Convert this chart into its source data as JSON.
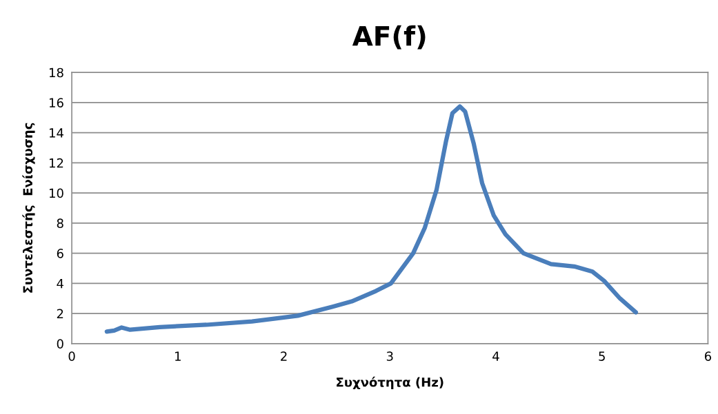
{
  "chart_data": {
    "type": "line",
    "title": "AF(f)",
    "xlabel": "Συχνότητα (Hz)",
    "ylabel": "Συντελεστής  Ενίσχυσης",
    "xlim": [
      0,
      6
    ],
    "xticks": [
      0,
      1,
      2,
      3,
      4,
      5,
      6
    ],
    "ylim": [
      0,
      18
    ],
    "yticks": [
      0,
      2,
      4,
      6,
      8,
      10,
      12,
      14,
      16,
      18
    ],
    "grid": "y",
    "legend": false,
    "marker": "none",
    "line_style": "solid",
    "series": [
      {
        "color": "#4a7ebb",
        "x": [
          0.33,
          0.4,
          0.47,
          0.55,
          0.83,
          1.27,
          1.7,
          2.13,
          2.46,
          2.64,
          2.87,
          3.01,
          3.22,
          3.33,
          3.44,
          3.53,
          3.59,
          3.66,
          3.71,
          3.79,
          3.87,
          3.98,
          4.09,
          4.26,
          4.52,
          4.74,
          4.91,
          5.02,
          5.17,
          5.32
        ],
        "values": [
          0.8,
          0.87,
          1.07,
          0.92,
          1.1,
          1.25,
          1.47,
          1.85,
          2.45,
          2.8,
          3.5,
          4.0,
          6.0,
          7.7,
          10.2,
          13.45,
          15.3,
          15.74,
          15.4,
          13.3,
          10.66,
          8.5,
          7.26,
          6.0,
          5.28,
          5.12,
          4.78,
          4.17,
          3.0,
          2.08
        ]
      }
    ]
  }
}
